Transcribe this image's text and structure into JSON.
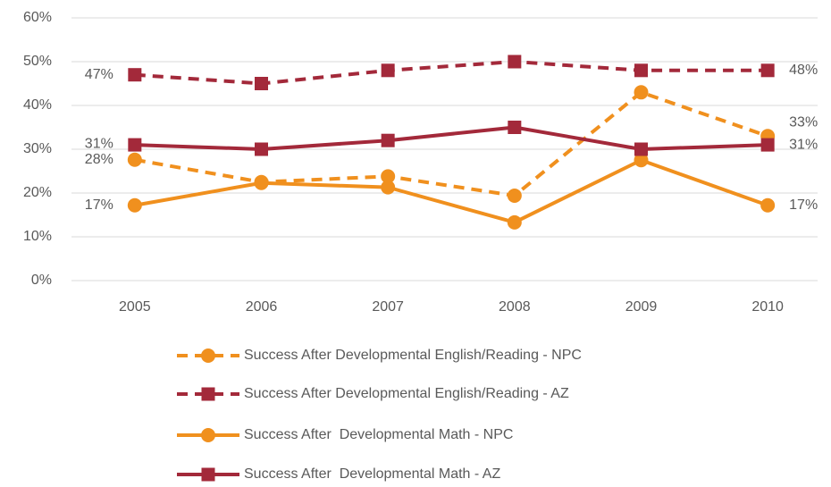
{
  "chart_data": {
    "type": "line",
    "categories": [
      "2005",
      "2006",
      "2007",
      "2008",
      "2009",
      "2010"
    ],
    "ylim": [
      0,
      60
    ],
    "yticks": [
      {
        "value": 0,
        "label": "0%"
      },
      {
        "value": 10,
        "label": "10%"
      },
      {
        "value": 20,
        "label": "20%"
      },
      {
        "value": 30,
        "label": "30%"
      },
      {
        "value": 40,
        "label": "40%"
      },
      {
        "value": 50,
        "label": "50%"
      },
      {
        "value": 60,
        "label": "60%"
      }
    ],
    "grid": true,
    "legend": "bottom",
    "series": [
      {
        "name": "Success After Developmental English/Reading - NPC",
        "color": "#f0901e",
        "dashed": true,
        "marker": "circle",
        "values": [
          27.6,
          22.5,
          23.8,
          19.4,
          43,
          33
        ],
        "value_labels": [
          "28%",
          null,
          null,
          null,
          null,
          "33%"
        ]
      },
      {
        "name": "Success After Developmental English/Reading - AZ",
        "color": "#a3293a",
        "dashed": true,
        "marker": "square",
        "values": [
          47,
          45,
          48,
          50,
          48,
          48
        ],
        "value_labels": [
          "47%",
          null,
          null,
          null,
          null,
          "48%"
        ]
      },
      {
        "name": "Success After  Developmental Math - NPC",
        "color": "#f0901e",
        "dashed": false,
        "marker": "circle",
        "values": [
          17.2,
          22.3,
          21.3,
          13.3,
          27.5,
          17.2
        ],
        "value_labels": [
          "17%",
          null,
          null,
          null,
          null,
          "17%"
        ]
      },
      {
        "name": "Success After  Developmental Math - AZ",
        "color": "#a3293a",
        "dashed": false,
        "marker": "square",
        "values": [
          31,
          30,
          32,
          35,
          30,
          31
        ],
        "value_labels": [
          "31%",
          null,
          null,
          null,
          null,
          "31%"
        ]
      }
    ]
  }
}
